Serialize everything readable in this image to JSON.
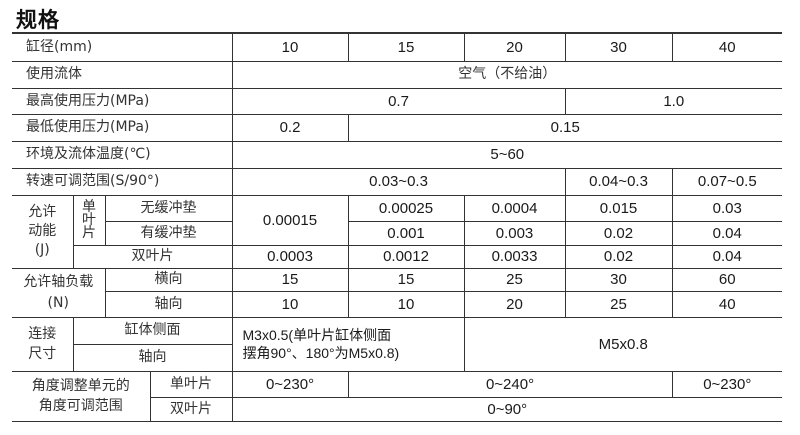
{
  "title": "规格",
  "rows": {
    "bore": {
      "label": "缸径(mm)",
      "values": [
        "10",
        "15",
        "20",
        "30",
        "40"
      ]
    },
    "fluid": {
      "label": "使用流体",
      "value": "空气（不给油）"
    },
    "max_pressure": {
      "label": "最高使用压力(MPa)",
      "values": [
        "0.7",
        "1.0"
      ]
    },
    "min_pressure": {
      "label": "最低使用压力(MPa)",
      "values": [
        "0.2",
        "0.15"
      ]
    },
    "temperature": {
      "label": "环境及流体温度(℃)",
      "value": "5~60"
    },
    "speed": {
      "label": "转速可调范围(S/90°)",
      "values": [
        "0.03~0.3",
        "0.04~0.3",
        "0.07~0.5"
      ]
    },
    "energy": {
      "label": "允许动能(J)",
      "single_label": "单叶片",
      "no_cushion_label": "无缓冲垫",
      "cushion_label": "有缓冲垫",
      "double_label": "双叶片",
      "single_shared": "0.00015",
      "no_cushion": [
        "0.00025",
        "0.0004",
        "0.015",
        "0.03"
      ],
      "cushion": [
        "0.001",
        "0.003",
        "0.02",
        "0.04"
      ],
      "double": [
        "0.0003",
        "0.0012",
        "0.0033",
        "0.02",
        "0.04"
      ]
    },
    "load": {
      "label": "允许轴负载(N)",
      "radial_label": "横向",
      "axial_label": "轴向",
      "radial": [
        "15",
        "15",
        "25",
        "30",
        "60"
      ],
      "axial": [
        "10",
        "10",
        "20",
        "25",
        "40"
      ]
    },
    "port": {
      "label": "连接尺寸",
      "side_label": "缸体侧面",
      "axial_label": "轴向",
      "small_line1": "M3x0.5(单叶片缸体侧面",
      "small_line2": "摆角90°、180°为M5x0.8)",
      "large": "M5x0.8"
    },
    "angle": {
      "label_line1": "角度调整单元的",
      "label_line2": "角度可调范围",
      "single_label": "单叶片",
      "double_label": "双叶片",
      "single": [
        "0~230°",
        "0~240°",
        "0~230°"
      ],
      "double": "0~90°"
    }
  }
}
